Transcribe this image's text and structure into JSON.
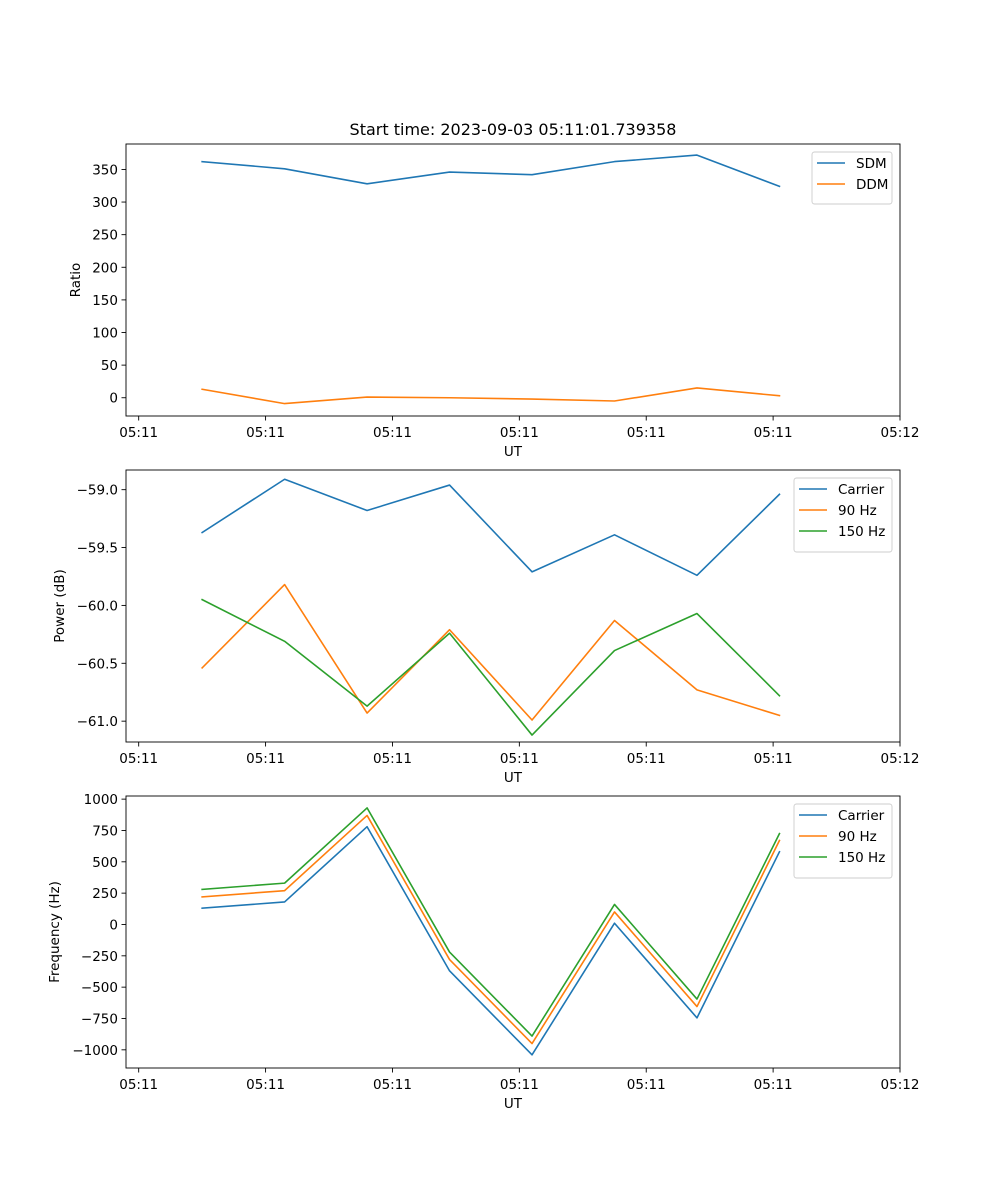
{
  "chart_data": [
    {
      "type": "line",
      "title": "Start time: 2023-09-03 05:11:01.739358",
      "xlabel": "UT",
      "ylabel": "Ratio",
      "xlim": [
        -0.6,
        5.5
      ],
      "x": [
        0,
        0.65,
        1.3,
        1.95,
        2.6,
        3.25,
        3.9,
        4.55
      ],
      "xticks": [
        -0.5,
        0.5,
        1.5,
        2.5,
        3.5,
        4.5,
        5.5
      ],
      "xtick_labels": [
        "05:11",
        "05:11",
        "05:11",
        "05:11",
        "05:11",
        "05:11",
        "05:12"
      ],
      "ylim": [
        -28,
        389
      ],
      "yticks": [
        0,
        50,
        100,
        150,
        200,
        250,
        300,
        350
      ],
      "ytick_labels": [
        "0",
        "50",
        "100",
        "150",
        "200",
        "250",
        "300",
        "350"
      ],
      "legend_position": "top-right",
      "series": [
        {
          "name": "SDM",
          "color": "#1f77b4",
          "values": [
            362,
            351,
            328,
            346,
            342,
            362,
            372,
            324
          ]
        },
        {
          "name": "DDM",
          "color": "#ff7f0e",
          "values": [
            13,
            -9,
            1,
            0,
            -2,
            -5,
            15,
            3
          ]
        }
      ]
    },
    {
      "type": "line",
      "title": "",
      "xlabel": "UT",
      "ylabel": "Power (dB)",
      "xlim": [
        -0.6,
        5.5
      ],
      "x": [
        0,
        0.65,
        1.3,
        1.95,
        2.6,
        3.25,
        3.9,
        4.55
      ],
      "xticks": [
        -0.5,
        0.5,
        1.5,
        2.5,
        3.5,
        4.5,
        5.5
      ],
      "xtick_labels": [
        "05:11",
        "05:11",
        "05:11",
        "05:11",
        "05:11",
        "05:11",
        "05:12"
      ],
      "ylim": [
        -61.18,
        -58.83
      ],
      "yticks": [
        -61.0,
        -60.5,
        -60.0,
        -59.5,
        -59.0
      ],
      "ytick_labels": [
        "−61.0",
        "−60.5",
        "−60.0",
        "−59.5",
        "−59.0"
      ],
      "legend_position": "top-right",
      "series": [
        {
          "name": "Carrier",
          "color": "#1f77b4",
          "values": [
            -59.37,
            -58.91,
            -59.18,
            -58.96,
            -59.71,
            -59.39,
            -59.74,
            -59.04
          ]
        },
        {
          "name": "90 Hz",
          "color": "#ff7f0e",
          "values": [
            -60.54,
            -59.82,
            -60.93,
            -60.21,
            -60.99,
            -60.13,
            -60.73,
            -60.95
          ]
        },
        {
          "name": "150 Hz",
          "color": "#2ca02c",
          "values": [
            -59.95,
            -60.31,
            -60.87,
            -60.24,
            -61.12,
            -60.39,
            -60.07,
            -60.78
          ]
        }
      ]
    },
    {
      "type": "line",
      "title": "",
      "xlabel": "UT",
      "ylabel": "Frequency (Hz)",
      "xlim": [
        -0.6,
        5.5
      ],
      "x": [
        0,
        0.65,
        1.3,
        1.95,
        2.6,
        3.25,
        3.9,
        4.55
      ],
      "xticks": [
        -0.5,
        0.5,
        1.5,
        2.5,
        3.5,
        4.5,
        5.5
      ],
      "xtick_labels": [
        "05:11",
        "05:11",
        "05:11",
        "05:11",
        "05:11",
        "05:11",
        "05:12"
      ],
      "ylim": [
        -1145,
        1025
      ],
      "yticks": [
        -1000,
        -750,
        -500,
        -250,
        0,
        250,
        500,
        750,
        1000
      ],
      "ytick_labels": [
        "−1000",
        "−750",
        "−500",
        "−250",
        "0",
        "250",
        "500",
        "750",
        "1000"
      ],
      "legend_position": "top-right",
      "series": [
        {
          "name": "Carrier",
          "color": "#1f77b4",
          "values": [
            130,
            180,
            780,
            -370,
            -1040,
            10,
            -745,
            580
          ]
        },
        {
          "name": "90 Hz",
          "color": "#ff7f0e",
          "values": [
            220,
            270,
            870,
            -280,
            -950,
            100,
            -655,
            670
          ]
        },
        {
          "name": "150 Hz",
          "color": "#2ca02c",
          "values": [
            280,
            330,
            930,
            -220,
            -890,
            160,
            -595,
            725
          ]
        }
      ]
    }
  ]
}
